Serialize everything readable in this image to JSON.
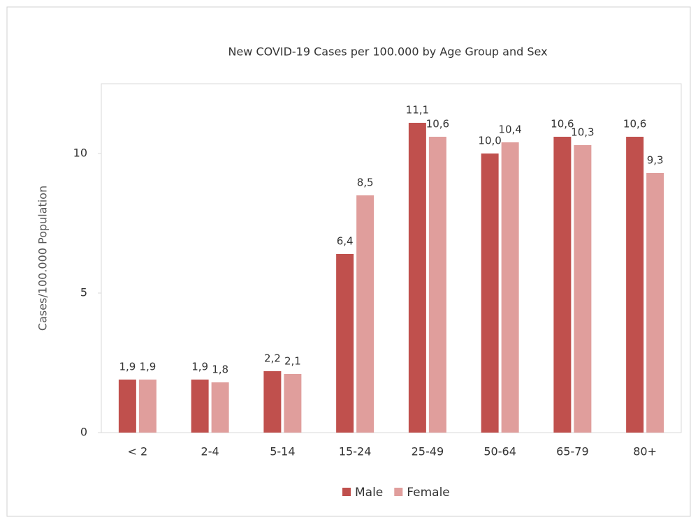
{
  "chart_data": {
    "type": "bar",
    "title": "New COVID-19 Cases per 100.000 by Age Group and Sex",
    "y_label": "Cases/100.000 Population",
    "categories": [
      "< 2",
      "2-4",
      "5-14",
      "15-24",
      "25-49",
      "50-64",
      "65-79",
      "80+"
    ],
    "series": [
      {
        "name": "Male",
        "color": "#c0504d",
        "values": [
          1.9,
          1.9,
          2.2,
          6.4,
          11.1,
          10.0,
          10.6,
          10.6
        ],
        "value_labels": [
          "1,9",
          "1,9",
          "2,2",
          "6,4",
          "11,1",
          "10,0",
          "10,6",
          "10,6"
        ]
      },
      {
        "name": "Female",
        "color": "#e09e9c",
        "values": [
          1.9,
          1.8,
          2.1,
          8.5,
          10.6,
          10.4,
          10.3,
          9.3
        ],
        "value_labels": [
          "1,9",
          "1,8",
          "2,1",
          "8,5",
          "10,6",
          "10,4",
          "10,3",
          "9,3"
        ]
      }
    ],
    "ylim": [
      0,
      12.5
    ],
    "yticks": [
      0,
      5,
      10
    ],
    "legend": "bottom"
  }
}
